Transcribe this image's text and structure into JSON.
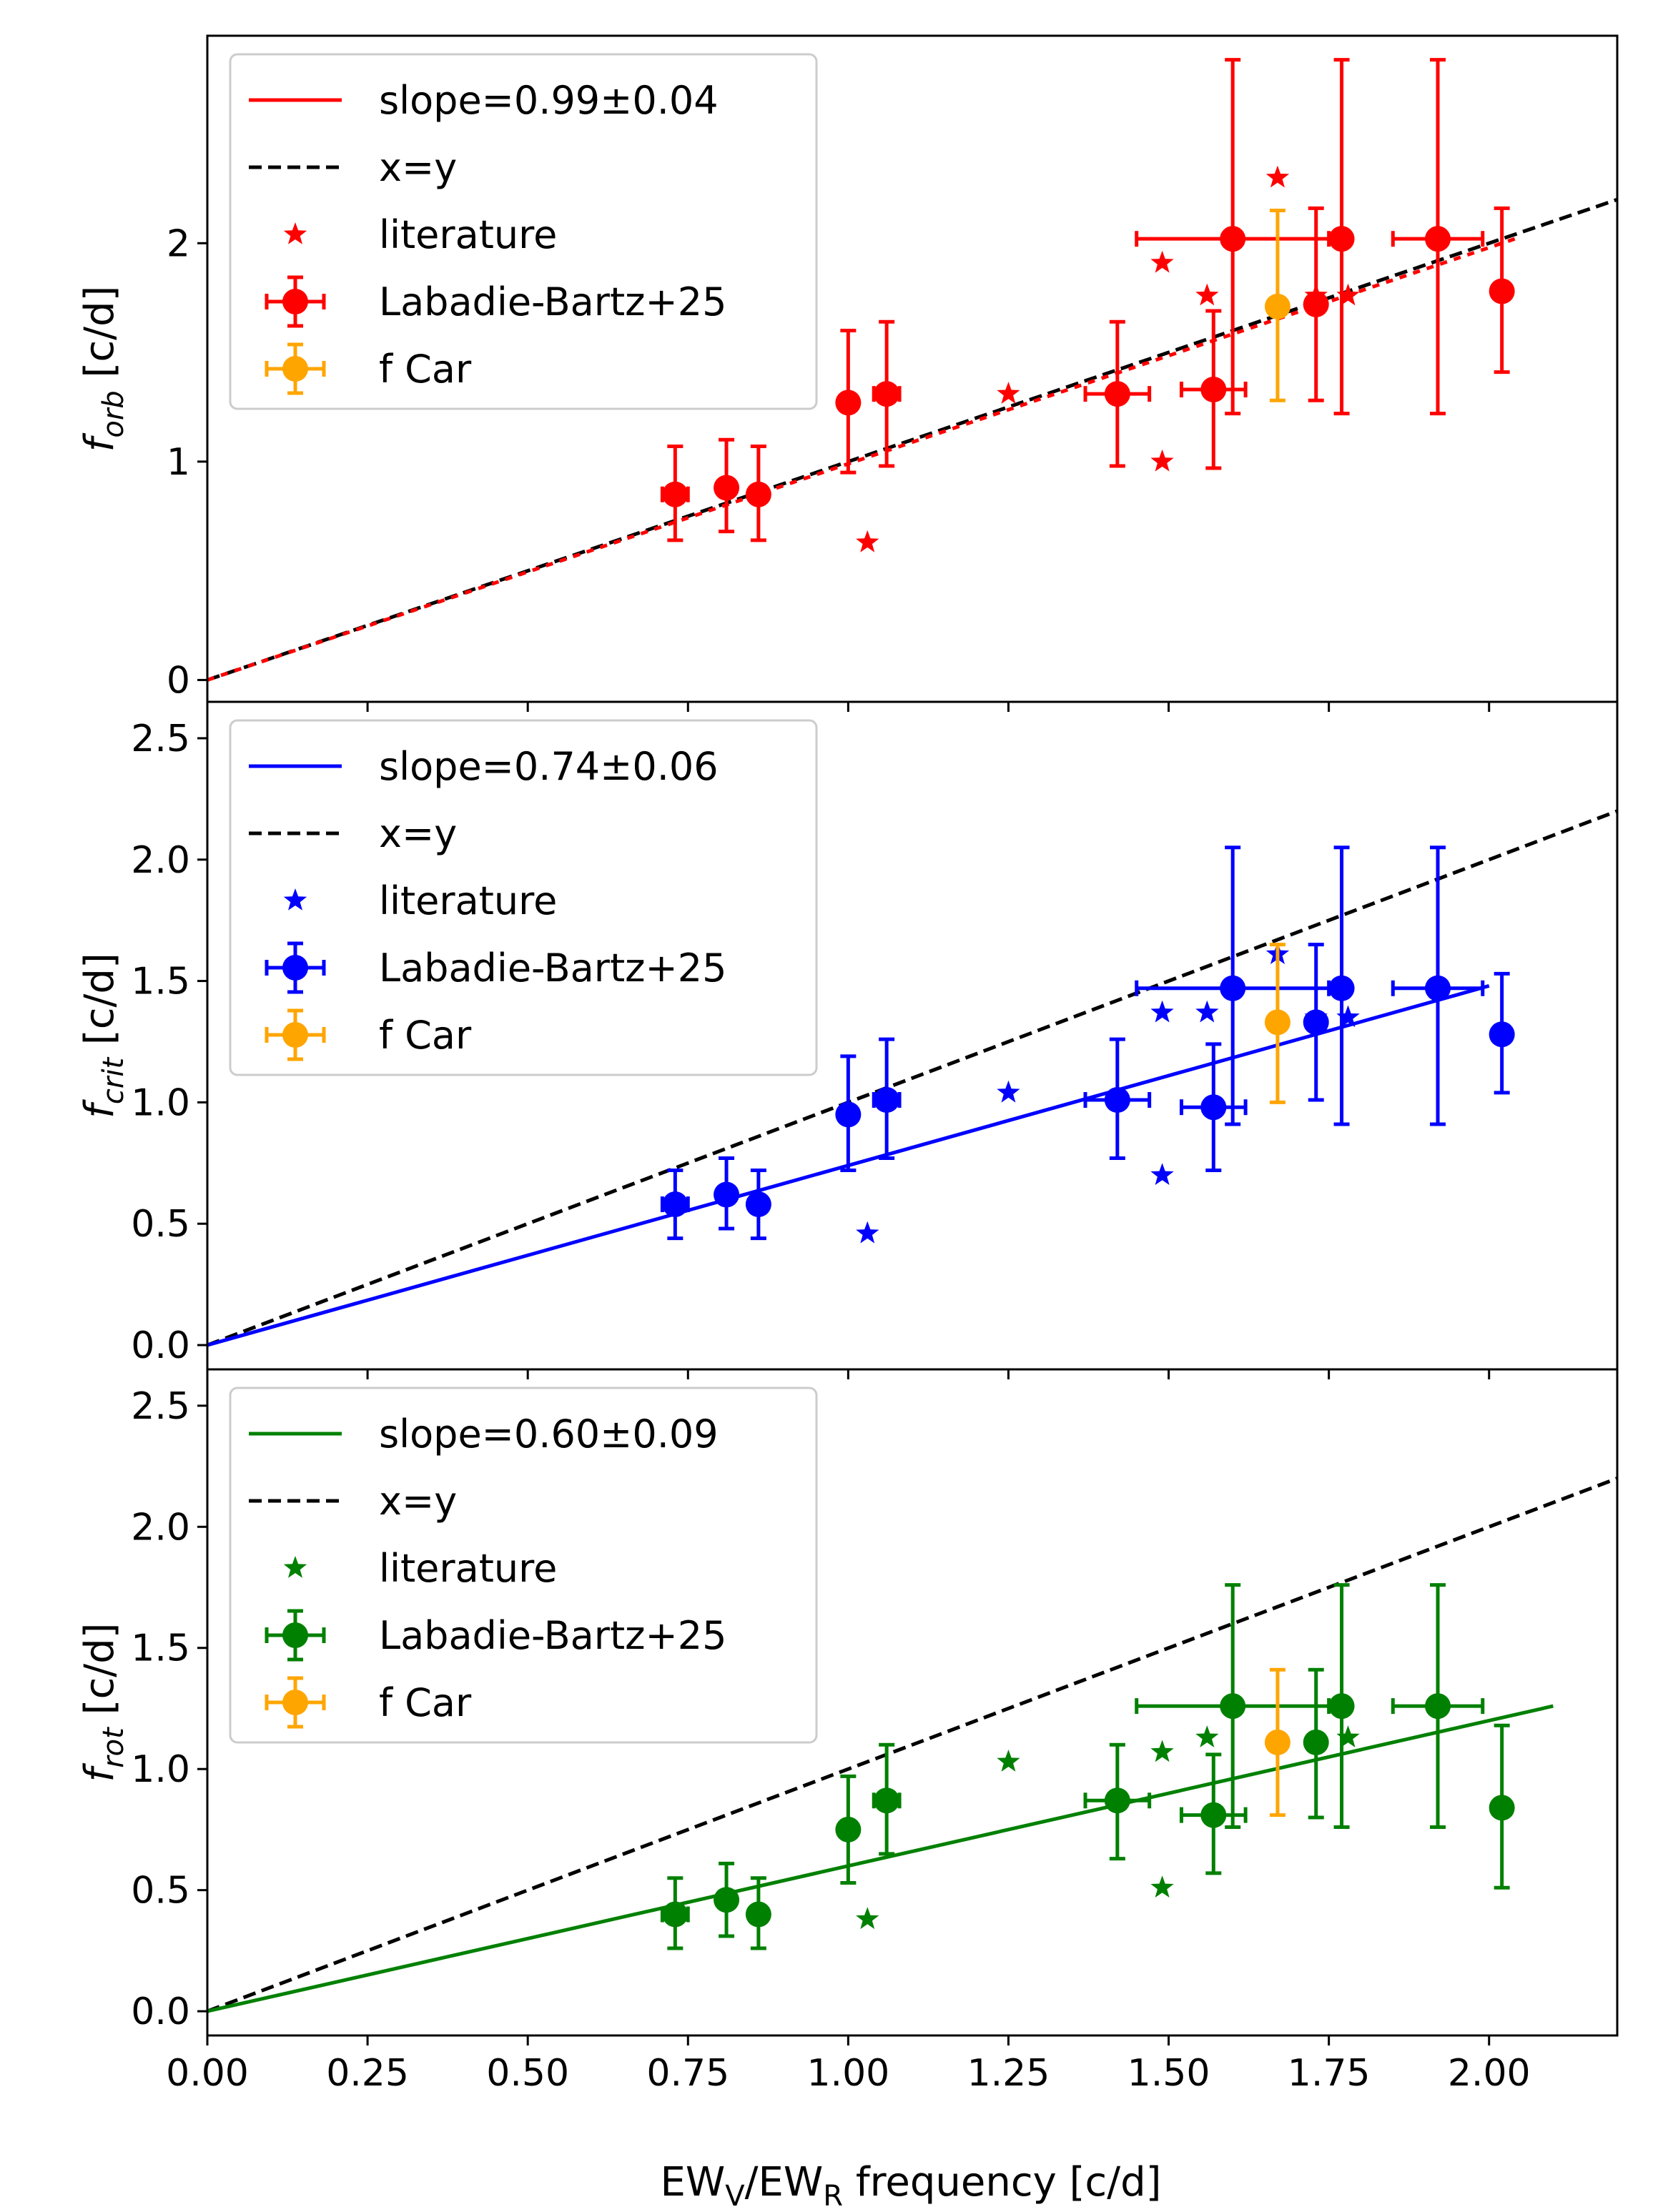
{
  "figure": {
    "xlabel": "EW",
    "xlabel_sub1": "V",
    "xlabel_mid": "/EW",
    "xlabel_sub2": "R",
    "xlabel_tail": " frequency [c/d]"
  },
  "chart_data": [
    {
      "type": "scatter",
      "panel": "top",
      "ylabel_main": "f",
      "ylabel_sub": "orb",
      "ylabel_unit": " [c/d]",
      "xlim": [
        0.0,
        2.2
      ],
      "ylim": [
        -0.1,
        2.95
      ],
      "xticks": [
        "0.00",
        "0.25",
        "0.50",
        "0.75",
        "1.00",
        "1.25",
        "1.50",
        "1.75",
        "2.00"
      ],
      "yticks": [
        "0",
        "1",
        "2"
      ],
      "color": "#ff0000",
      "legend": {
        "fit": "slope=0.99±0.04",
        "xy": "x=y",
        "lit": "literature",
        "lb": "Labadie-Bartz+25",
        "fcar": "f Car"
      },
      "fit": {
        "slope": 0.99,
        "x_end": 2.05
      },
      "literature": [
        [
          1.03,
          0.63
        ],
        [
          1.25,
          1.31
        ],
        [
          1.49,
          1.91
        ],
        [
          1.49,
          1.0
        ],
        [
          1.56,
          1.76
        ],
        [
          1.67,
          2.3
        ],
        [
          1.73,
          1.76
        ],
        [
          1.78,
          1.76
        ]
      ],
      "labadie_bartz": [
        {
          "x": 0.73,
          "y": 0.85,
          "xerr": 0.02,
          "ylo": 0.64,
          "yhi": 1.07
        },
        {
          "x": 0.81,
          "y": 0.88,
          "xerr": 0.0,
          "ylo": 0.68,
          "yhi": 1.1
        },
        {
          "x": 0.86,
          "y": 0.85,
          "xerr": 0.0,
          "ylo": 0.64,
          "yhi": 1.07
        },
        {
          "x": 1.0,
          "y": 1.27,
          "xerr": 0.0,
          "ylo": 0.95,
          "yhi": 1.6
        },
        {
          "x": 1.06,
          "y": 1.31,
          "xerr": 0.02,
          "ylo": 0.98,
          "yhi": 1.64
        },
        {
          "x": 1.42,
          "y": 1.31,
          "xerr": 0.05,
          "ylo": 0.98,
          "yhi": 1.64
        },
        {
          "x": 1.57,
          "y": 1.33,
          "xerr": 0.05,
          "ylo": 0.97,
          "yhi": 1.69
        },
        {
          "x": 1.6,
          "y": 2.02,
          "xerr": 0.15,
          "ylo": 1.22,
          "yhi": 2.84
        },
        {
          "x": 1.73,
          "y": 1.72,
          "xerr": 0.0,
          "ylo": 1.28,
          "yhi": 2.16
        },
        {
          "x": 1.77,
          "y": 2.02,
          "xerr": 0.0,
          "ylo": 1.22,
          "yhi": 2.84
        },
        {
          "x": 1.92,
          "y": 2.02,
          "xerr": 0.07,
          "ylo": 1.22,
          "yhi": 2.84
        },
        {
          "x": 2.02,
          "y": 1.78,
          "xerr": 0.0,
          "ylo": 1.41,
          "yhi": 2.16
        }
      ],
      "fcar": {
        "x": 1.67,
        "y": 1.71,
        "xerr": 0.0,
        "ylo": 1.28,
        "yhi": 2.15
      }
    },
    {
      "type": "scatter",
      "panel": "middle",
      "ylabel_main": "f",
      "ylabel_sub": "crit",
      "ylabel_unit": " [c/d]",
      "xlim": [
        0.0,
        2.2
      ],
      "ylim": [
        -0.1,
        2.65
      ],
      "xticks": [
        "0.00",
        "0.25",
        "0.50",
        "0.75",
        "1.00",
        "1.25",
        "1.50",
        "1.75",
        "2.00"
      ],
      "yticks": [
        "0.0",
        "0.5",
        "1.0",
        "1.5",
        "2.0",
        "2.5"
      ],
      "color": "#0000ff",
      "legend": {
        "fit": "slope=0.74±0.06",
        "xy": "x=y",
        "lit": "literature",
        "lb": "Labadie-Bartz+25",
        "fcar": "f Car"
      },
      "fit": {
        "slope": 0.74,
        "x_end": 2.0
      },
      "literature": [
        [
          1.03,
          0.46
        ],
        [
          1.25,
          1.04
        ],
        [
          1.49,
          1.37
        ],
        [
          1.49,
          0.7
        ],
        [
          1.56,
          1.37
        ],
        [
          1.67,
          1.61
        ],
        [
          1.73,
          1.35
        ],
        [
          1.78,
          1.35
        ]
      ],
      "labadie_bartz": [
        {
          "x": 0.73,
          "y": 0.58,
          "xerr": 0.02,
          "ylo": 0.44,
          "yhi": 0.72
        },
        {
          "x": 0.81,
          "y": 0.62,
          "xerr": 0.0,
          "ylo": 0.48,
          "yhi": 0.77
        },
        {
          "x": 0.86,
          "y": 0.58,
          "xerr": 0.0,
          "ylo": 0.44,
          "yhi": 0.72
        },
        {
          "x": 1.0,
          "y": 0.95,
          "xerr": 0.0,
          "ylo": 0.72,
          "yhi": 1.19
        },
        {
          "x": 1.06,
          "y": 1.01,
          "xerr": 0.02,
          "ylo": 0.77,
          "yhi": 1.26
        },
        {
          "x": 1.42,
          "y": 1.01,
          "xerr": 0.05,
          "ylo": 0.77,
          "yhi": 1.26
        },
        {
          "x": 1.57,
          "y": 0.98,
          "xerr": 0.05,
          "ylo": 0.72,
          "yhi": 1.24
        },
        {
          "x": 1.6,
          "y": 1.47,
          "xerr": 0.15,
          "ylo": 0.91,
          "yhi": 2.05
        },
        {
          "x": 1.73,
          "y": 1.33,
          "xerr": 0.0,
          "ylo": 1.01,
          "yhi": 1.65
        },
        {
          "x": 1.77,
          "y": 1.47,
          "xerr": 0.0,
          "ylo": 0.91,
          "yhi": 2.05
        },
        {
          "x": 1.92,
          "y": 1.47,
          "xerr": 0.07,
          "ylo": 0.91,
          "yhi": 2.05
        },
        {
          "x": 2.02,
          "y": 1.28,
          "xerr": 0.0,
          "ylo": 1.04,
          "yhi": 1.53
        }
      ],
      "fcar": {
        "x": 1.67,
        "y": 1.33,
        "xerr": 0.0,
        "ylo": 1.0,
        "yhi": 1.65
      }
    },
    {
      "type": "scatter",
      "panel": "bottom",
      "ylabel_main": "f",
      "ylabel_sub": "rot",
      "ylabel_unit": " [c/d]",
      "xlim": [
        0.0,
        2.2
      ],
      "ylim": [
        -0.1,
        2.65
      ],
      "xticks": [
        "0.00",
        "0.25",
        "0.50",
        "0.75",
        "1.00",
        "1.25",
        "1.50",
        "1.75",
        "2.00"
      ],
      "yticks": [
        "0.0",
        "0.5",
        "1.0",
        "1.5",
        "2.0",
        "2.5"
      ],
      "color": "#008000",
      "legend": {
        "fit": "slope=0.60±0.09",
        "xy": "x=y",
        "lit": "literature",
        "lb": "Labadie-Bartz+25",
        "fcar": "f Car"
      },
      "fit": {
        "slope": 0.6,
        "x_end": 2.1
      },
      "literature": [
        [
          1.03,
          0.38
        ],
        [
          1.25,
          1.03
        ],
        [
          1.49,
          1.07
        ],
        [
          1.49,
          0.51
        ],
        [
          1.56,
          1.13
        ],
        [
          1.67,
          1.11
        ],
        [
          1.73,
          1.11
        ],
        [
          1.78,
          1.13
        ]
      ],
      "labadie_bartz": [
        {
          "x": 0.73,
          "y": 0.4,
          "xerr": 0.02,
          "ylo": 0.26,
          "yhi": 0.55
        },
        {
          "x": 0.81,
          "y": 0.46,
          "xerr": 0.0,
          "ylo": 0.31,
          "yhi": 0.61
        },
        {
          "x": 0.86,
          "y": 0.4,
          "xerr": 0.0,
          "ylo": 0.26,
          "yhi": 0.55
        },
        {
          "x": 1.0,
          "y": 0.75,
          "xerr": 0.0,
          "ylo": 0.53,
          "yhi": 0.97
        },
        {
          "x": 1.06,
          "y": 0.87,
          "xerr": 0.02,
          "ylo": 0.65,
          "yhi": 1.1
        },
        {
          "x": 1.42,
          "y": 0.87,
          "xerr": 0.05,
          "ylo": 0.63,
          "yhi": 1.1
        },
        {
          "x": 1.57,
          "y": 0.81,
          "xerr": 0.05,
          "ylo": 0.57,
          "yhi": 1.06
        },
        {
          "x": 1.6,
          "y": 1.26,
          "xerr": 0.15,
          "ylo": 0.76,
          "yhi": 1.76
        },
        {
          "x": 1.73,
          "y": 1.11,
          "xerr": 0.0,
          "ylo": 0.8,
          "yhi": 1.41
        },
        {
          "x": 1.77,
          "y": 1.26,
          "xerr": 0.0,
          "ylo": 0.76,
          "yhi": 1.76
        },
        {
          "x": 1.92,
          "y": 1.26,
          "xerr": 0.07,
          "ylo": 0.76,
          "yhi": 1.76
        },
        {
          "x": 2.02,
          "y": 0.84,
          "xerr": 0.0,
          "ylo": 0.51,
          "yhi": 1.18
        }
      ],
      "fcar": {
        "x": 1.67,
        "y": 1.11,
        "xerr": 0.0,
        "ylo": 0.81,
        "yhi": 1.41
      }
    }
  ],
  "colors": {
    "fcar": "#ffa500",
    "xy_line": "#000000"
  }
}
